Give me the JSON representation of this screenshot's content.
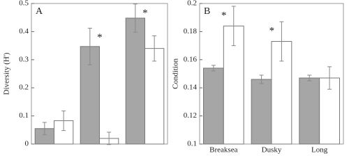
{
  "chart_data": [
    {
      "type": "bar",
      "title": "A",
      "y_label": "Diversity (H')",
      "categories": [
        null,
        null,
        null
      ],
      "series": [
        {
          "color": "#a6a6a6",
          "values": [
            0.055,
            0.347,
            0.448
          ],
          "errors": [
            0.022,
            0.065,
            0.05
          ],
          "significance": [
            null,
            "*",
            "*"
          ]
        },
        {
          "color": "#ffffff",
          "values": [
            0.083,
            0.02,
            0.34
          ],
          "errors": [
            0.035,
            0.022,
            0.045
          ],
          "significance": [
            null,
            null,
            null
          ]
        }
      ],
      "ylim": [
        0,
        0.5
      ],
      "yticks": [
        0,
        0.1,
        0.2,
        0.3,
        0.4,
        0.5
      ]
    },
    {
      "type": "bar",
      "title": "B",
      "y_label": "Condition",
      "categories": [
        "Breaksea",
        "Dusky",
        "Long"
      ],
      "series": [
        {
          "color": "#a6a6a6",
          "values": [
            0.154,
            0.146,
            0.147
          ],
          "errors": [
            0.002,
            0.003,
            0.002
          ],
          "significance": [
            null,
            null,
            null
          ]
        },
        {
          "color": "#ffffff",
          "values": [
            0.184,
            0.173,
            0.147
          ],
          "errors": [
            0.014,
            0.014,
            0.008
          ],
          "significance": [
            "*",
            "*",
            null
          ]
        }
      ],
      "ylim": [
        0.1,
        0.2
      ],
      "yticks": [
        0.1,
        0.12,
        0.14,
        0.16,
        0.18,
        0.2
      ]
    }
  ]
}
